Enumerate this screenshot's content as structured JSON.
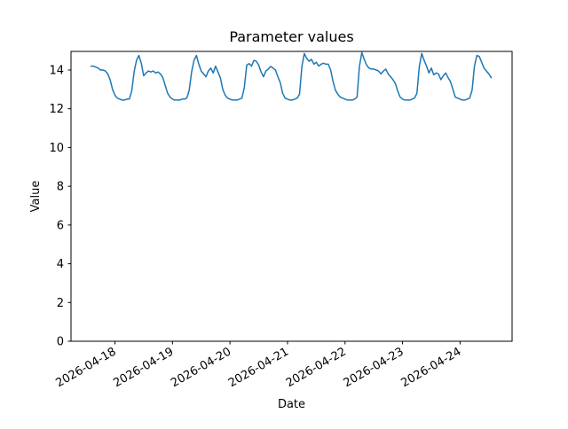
{
  "figure": {
    "background_color": "#ffffff",
    "spine_color": "#000000",
    "tick_color": "#000000"
  },
  "chart_data": {
    "type": "line",
    "title": "Parameter values",
    "xlabel": "Date",
    "ylabel": "Value",
    "series_name": "Parameter values",
    "series_color": "#1f77b4",
    "grid": "off",
    "legend": "none",
    "ylim": [
      0,
      14.96
    ],
    "y_ticks": [
      0,
      2,
      4,
      6,
      8,
      10,
      12,
      14
    ],
    "x_tick_labels": [
      "2026-04-18",
      "2026-04-19",
      "2026-04-20",
      "2026-04-21",
      "2026-04-22",
      "2026-04-23",
      "2026-04-24"
    ],
    "x_tick_hour_index": [
      10,
      34,
      58,
      82,
      106,
      130,
      154
    ],
    "x_start": "2026-04-17 14:00",
    "x_step_hours": 1,
    "values": [
      14.2,
      14.2,
      14.15,
      14.1,
      14.0,
      14.0,
      13.95,
      13.8,
      13.5,
      13.0,
      12.7,
      12.55,
      12.5,
      12.45,
      12.45,
      12.5,
      12.5,
      12.9,
      13.9,
      14.5,
      14.75,
      14.35,
      13.7,
      13.85,
      13.95,
      13.9,
      13.95,
      13.85,
      13.9,
      13.8,
      13.6,
      13.2,
      12.8,
      12.6,
      12.5,
      12.45,
      12.45,
      12.45,
      12.5,
      12.5,
      12.55,
      12.95,
      13.9,
      14.5,
      14.75,
      14.3,
      13.95,
      13.8,
      13.65,
      13.95,
      14.1,
      13.85,
      14.2,
      13.9,
      13.6,
      13.0,
      12.7,
      12.55,
      12.5,
      12.45,
      12.45,
      12.45,
      12.5,
      12.55,
      13.1,
      14.25,
      14.33,
      14.2,
      14.5,
      14.45,
      14.25,
      13.9,
      13.65,
      13.95,
      14.05,
      14.18,
      14.1,
      14.0,
      13.65,
      13.35,
      12.8,
      12.55,
      12.5,
      12.45,
      12.45,
      12.5,
      12.55,
      12.75,
      14.2,
      14.85,
      14.6,
      14.45,
      14.55,
      14.3,
      14.4,
      14.2,
      14.3,
      14.35,
      14.3,
      14.3,
      14.0,
      13.4,
      12.95,
      12.75,
      12.6,
      12.55,
      12.5,
      12.45,
      12.45,
      12.45,
      12.5,
      12.6,
      14.2,
      14.9,
      14.55,
      14.25,
      14.1,
      14.05,
      14.05,
      14.0,
      13.95,
      13.8,
      13.95,
      14.05,
      13.8,
      13.65,
      13.5,
      13.3,
      12.9,
      12.6,
      12.5,
      12.45,
      12.45,
      12.45,
      12.5,
      12.55,
      12.8,
      14.2,
      14.85,
      14.5,
      14.2,
      13.85,
      14.1,
      13.75,
      13.85,
      13.8,
      13.5,
      13.7,
      13.85,
      13.6,
      13.4,
      13.0,
      12.6,
      12.55,
      12.5,
      12.45,
      12.45,
      12.5,
      12.55,
      12.95,
      14.2,
      14.75,
      14.7,
      14.4,
      14.1,
      13.95,
      13.8,
      13.6
    ]
  }
}
